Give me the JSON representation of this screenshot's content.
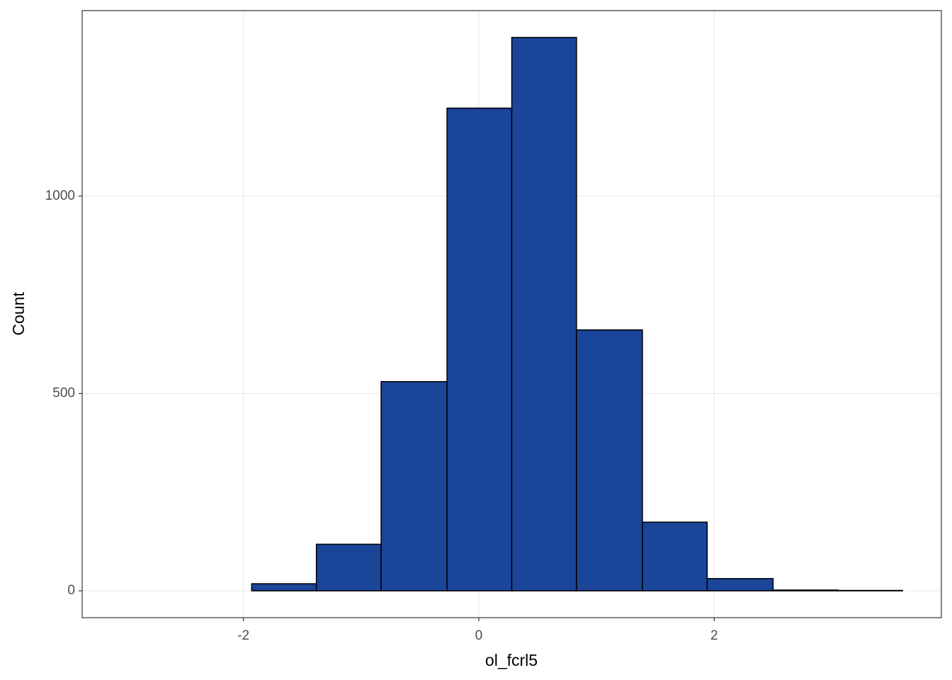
{
  "chart_data": {
    "type": "histogram",
    "x_label": "ol_fcrl5",
    "y_label": "Count",
    "bins": [
      -3.04,
      -2.49,
      -1.93,
      -1.38,
      -0.83,
      -0.27,
      0.28,
      0.83,
      1.39,
      1.94,
      2.5,
      3.05,
      3.6
    ],
    "values": [
      0,
      0,
      18,
      118,
      530,
      1223,
      1402,
      661,
      174,
      31,
      2,
      1
    ],
    "color": "#1a4599",
    "xlim": [
      -3.37,
      3.93
    ],
    "xticks": [
      -2,
      0,
      2
    ],
    "ylim": [
      -68,
      1470
    ],
    "yticks": [
      0,
      500,
      1000
    ],
    "grid": true
  }
}
